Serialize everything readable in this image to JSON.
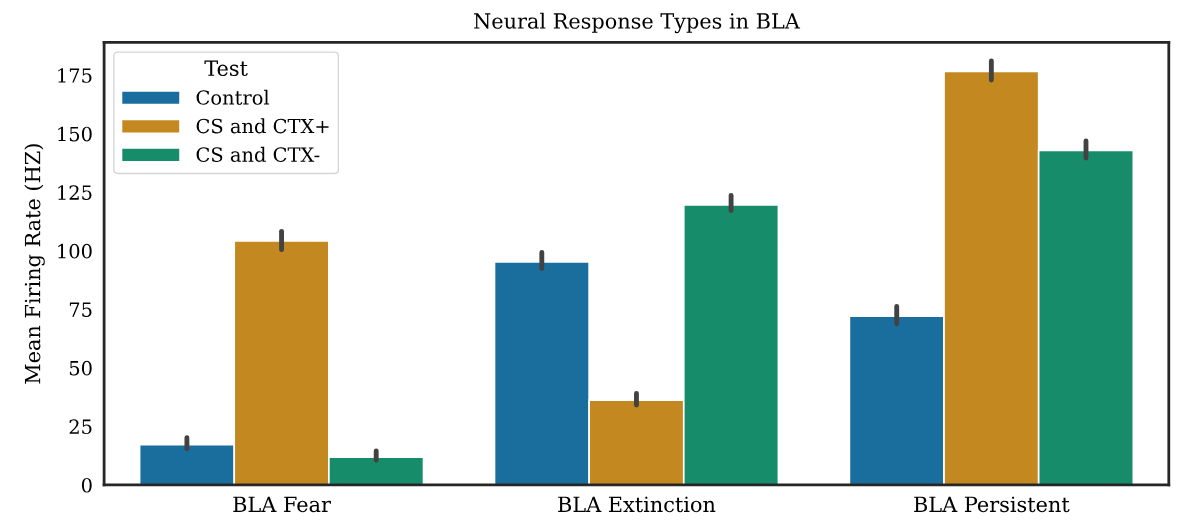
{
  "chart_data": {
    "type": "bar",
    "title": "Neural Response Types in BLA",
    "ylabel": "Mean Firing Rate (HZ)",
    "categories": [
      "BLA Fear",
      "BLA Extinction",
      "BLA Persistent"
    ],
    "series": [
      {
        "name": "Control",
        "color": "#1a6e9e",
        "values": [
          17.2,
          95.3,
          72.1
        ],
        "errors": [
          [
            15.5,
            20.2
          ],
          [
            92.4,
            99.3
          ],
          [
            68.8,
            76.2
          ]
        ]
      },
      {
        "name": "CS and CTX+",
        "color": "#c48820",
        "values": [
          104.2,
          36.2,
          176.6
        ],
        "errors": [
          [
            100.5,
            108.3
          ],
          [
            34.1,
            39.1
          ],
          [
            172.9,
            181.1
          ]
        ]
      },
      {
        "name": "CS and CTX-",
        "color": "#178c6a",
        "values": [
          11.9,
          119.6,
          142.9
        ],
        "errors": [
          [
            10.5,
            14.5
          ],
          [
            117.2,
            123.6
          ],
          [
            139.6,
            146.9
          ]
        ]
      }
    ],
    "legend_title": "Test",
    "legend": "top left",
    "grid": false,
    "ylim": [
      0,
      189
    ],
    "yticks": [
      0,
      25,
      50,
      75,
      100,
      125,
      150,
      175
    ]
  }
}
